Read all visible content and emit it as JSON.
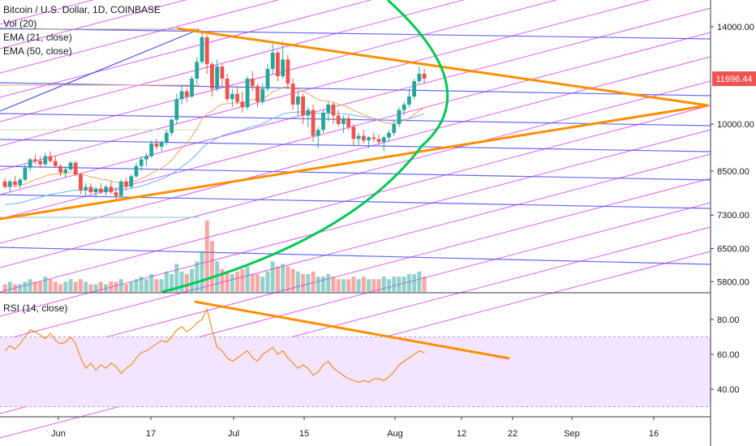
{
  "header": {
    "title": "Bitcoin / U.S. Dollar, 1D, COINBASE"
  },
  "indicators": [
    {
      "label": "Vol (20)"
    },
    {
      "label": "EMA (21, close)"
    },
    {
      "label": "EMA (50, close)"
    }
  ],
  "rsi_panel": {
    "label": "RSI (14, close)"
  },
  "price_badge": {
    "value": "11696.44",
    "color": "#ef5350"
  },
  "colors": {
    "up": "#26a69a",
    "down": "#ef5350",
    "ema21": "#f7a35c",
    "ema50": "#64b5f6",
    "trendline": "#ff8f00",
    "fan_magenta": "#e040fb",
    "fan_blue": "#4a50e8",
    "parabola": "#00c853",
    "rsi_line": "#f57c00",
    "rsi_band": "#f3e5ff"
  },
  "chart_data": [
    {
      "type": "candlestick",
      "title": "Bitcoin / U.S. Dollar, 1D, COINBASE",
      "y_scale": "log",
      "ylim": [
        5300,
        16000
      ],
      "y_ticks": [
        {
          "value": 14000,
          "label": "14000.00"
        },
        {
          "value": 10000,
          "label": "10000.00"
        },
        {
          "value": 8500,
          "label": "8500.00"
        },
        {
          "value": 7300,
          "label": "7300.00"
        },
        {
          "value": 6500,
          "label": "6500.00"
        },
        {
          "value": 5800,
          "label": "5800.00"
        }
      ],
      "x_ticks": [
        {
          "label": "Jun"
        },
        {
          "label": "17"
        },
        {
          "label": "Jul"
        },
        {
          "label": "15"
        },
        {
          "label": "Aug"
        },
        {
          "label": "12"
        },
        {
          "label": "22"
        },
        {
          "label": "Sep"
        },
        {
          "label": "16"
        }
      ],
      "last_price": 11696.44,
      "candles": [
        [
          8200,
          8300,
          8000,
          8050
        ],
        [
          8050,
          8250,
          7900,
          8200
        ],
        [
          8200,
          8350,
          8050,
          8100
        ],
        [
          8100,
          8300,
          8000,
          8250
        ],
        [
          8250,
          8700,
          8200,
          8600
        ],
        [
          8600,
          8900,
          8500,
          8850
        ],
        [
          8850,
          9000,
          8700,
          8800
        ],
        [
          8800,
          8950,
          8600,
          8700
        ],
        [
          8700,
          9050,
          8650,
          8950
        ],
        [
          8950,
          9100,
          8750,
          8800
        ],
        [
          8800,
          8950,
          8600,
          8650
        ],
        [
          8650,
          8700,
          8350,
          8450
        ],
        [
          8450,
          8650,
          8300,
          8550
        ],
        [
          8550,
          8800,
          8500,
          8750
        ],
        [
          8750,
          8800,
          8350,
          8400
        ],
        [
          8400,
          8450,
          7850,
          7950
        ],
        [
          7950,
          8150,
          7800,
          8050
        ],
        [
          8050,
          8150,
          7850,
          7900
        ],
        [
          7900,
          8050,
          7750,
          8000
        ],
        [
          8000,
          8150,
          7850,
          7900
        ],
        [
          7900,
          8100,
          7800,
          8050
        ],
        [
          8050,
          8200,
          7850,
          7900
        ],
        [
          7900,
          8000,
          7650,
          7800
        ],
        [
          7800,
          8250,
          7750,
          8200
        ],
        [
          8200,
          8300,
          7950,
          8050
        ],
        [
          8050,
          8400,
          8000,
          8350
        ],
        [
          8350,
          8750,
          8300,
          8650
        ],
        [
          8650,
          8950,
          8500,
          8850
        ],
        [
          8850,
          9050,
          8650,
          8950
        ],
        [
          8950,
          9450,
          8900,
          9350
        ],
        [
          9350,
          9500,
          9150,
          9250
        ],
        [
          9250,
          9450,
          9100,
          9400
        ],
        [
          9400,
          9800,
          9300,
          9700
        ],
        [
          9700,
          10200,
          9600,
          10150
        ],
        [
          10150,
          11100,
          10000,
          10900
        ],
        [
          10900,
          11400,
          10700,
          11200
        ],
        [
          11200,
          11300,
          10800,
          11000
        ],
        [
          11000,
          11800,
          10950,
          11700
        ],
        [
          11700,
          12600,
          11500,
          12400
        ],
        [
          12400,
          13850,
          12300,
          13500
        ],
        [
          13500,
          13600,
          11900,
          12300
        ],
        [
          12300,
          12400,
          11000,
          11300
        ],
        [
          11300,
          12500,
          11200,
          12200
        ],
        [
          12200,
          12300,
          11400,
          11700
        ],
        [
          11700,
          11900,
          10800,
          10900
        ],
        [
          10900,
          11300,
          10600,
          11100
        ],
        [
          11100,
          11400,
          10700,
          10800
        ],
        [
          10800,
          11200,
          10400,
          10600
        ],
        [
          10600,
          11800,
          10500,
          11700
        ],
        [
          11700,
          12000,
          11200,
          11400
        ],
        [
          11400,
          11500,
          10600,
          10800
        ],
        [
          10800,
          11500,
          10700,
          11300
        ],
        [
          11300,
          12300,
          11200,
          12100
        ],
        [
          12100,
          13200,
          11900,
          12800
        ],
        [
          12800,
          12900,
          11600,
          11800
        ],
        [
          11800,
          13300,
          11700,
          12500
        ],
        [
          12500,
          12700,
          11300,
          11500
        ],
        [
          11500,
          11700,
          10500,
          10700
        ],
        [
          10700,
          11200,
          10300,
          11000
        ],
        [
          11000,
          11100,
          10000,
          10300
        ],
        [
          10300,
          10600,
          9900,
          10500
        ],
        [
          10500,
          10700,
          9400,
          9600
        ],
        [
          9600,
          9900,
          9200,
          9800
        ],
        [
          9800,
          10500,
          9700,
          10400
        ],
        [
          10400,
          10800,
          10100,
          10700
        ],
        [
          10700,
          10800,
          10000,
          10300
        ],
        [
          10300,
          10500,
          9900,
          10000
        ],
        [
          10000,
          10300,
          9700,
          10200
        ],
        [
          10200,
          10300,
          9800,
          9900
        ],
        [
          9900,
          10000,
          9300,
          9500
        ],
        [
          9500,
          9700,
          9300,
          9600
        ],
        [
          9600,
          9800,
          9350,
          9450
        ],
        [
          9450,
          9600,
          9200,
          9550
        ],
        [
          9550,
          9700,
          9400,
          9500
        ],
        [
          9500,
          9650,
          9300,
          9400
        ],
        [
          9400,
          9600,
          9100,
          9550
        ],
        [
          9550,
          9800,
          9400,
          9700
        ],
        [
          9700,
          10100,
          9600,
          10000
        ],
        [
          10000,
          10600,
          9900,
          10500
        ],
        [
          10500,
          10800,
          10300,
          10700
        ],
        [
          10700,
          11300,
          10600,
          11000
        ],
        [
          11000,
          11700,
          10900,
          11600
        ],
        [
          11600,
          12200,
          11500,
          11900
        ],
        [
          11900,
          12100,
          11500,
          11700
        ]
      ]
    },
    {
      "type": "bar",
      "title": "Vol (20)",
      "values": [
        3,
        4,
        3,
        3,
        4,
        5,
        4,
        4,
        6,
        5,
        4,
        3,
        4,
        5,
        4,
        5,
        4,
        3,
        3,
        4,
        3,
        4,
        4,
        5,
        3,
        4,
        5,
        6,
        5,
        7,
        5,
        5,
        8,
        7,
        11,
        8,
        7,
        9,
        12,
        16,
        28,
        20,
        12,
        9,
        8,
        7,
        8,
        9,
        10,
        7,
        7,
        6,
        8,
        12,
        10,
        11,
        10,
        9,
        8,
        7,
        7,
        8,
        6,
        6,
        7,
        6,
        5,
        5,
        5,
        6,
        5,
        6,
        5,
        5,
        5,
        6,
        5,
        6,
        6,
        6,
        7,
        7,
        8,
        6
      ]
    },
    {
      "type": "line",
      "title": "RSI (14, close)",
      "ylim": [
        25,
        90
      ],
      "y_ticks": [
        {
          "value": 80,
          "label": "80.00"
        },
        {
          "value": 60,
          "label": "60.00"
        },
        {
          "value": 40,
          "label": "40.00"
        }
      ],
      "band": [
        30,
        70
      ],
      "values": [
        62,
        65,
        63,
        66,
        70,
        74,
        73,
        71,
        69,
        72,
        68,
        66,
        67,
        70,
        66,
        58,
        52,
        55,
        51,
        54,
        52,
        55,
        53,
        49,
        52,
        54,
        58,
        61,
        62,
        64,
        66,
        68,
        67,
        70,
        74,
        76,
        73,
        75,
        78,
        80,
        86,
        74,
        64,
        62,
        58,
        56,
        58,
        60,
        62,
        58,
        56,
        60,
        62,
        64,
        60,
        62,
        58,
        55,
        52,
        54,
        52,
        48,
        50,
        54,
        56,
        52,
        50,
        48,
        46,
        45,
        44,
        45,
        44,
        46,
        46,
        45,
        47,
        50,
        54,
        56,
        58,
        60,
        62,
        61
      ]
    }
  ]
}
